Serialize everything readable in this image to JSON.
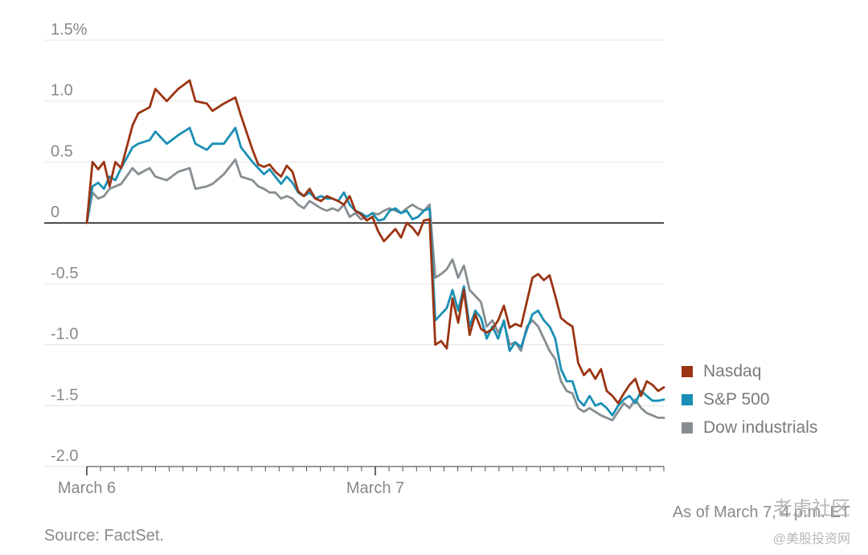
{
  "chart_data": {
    "type": "line",
    "y_ticks": [
      "1.5%",
      "1.0",
      "0.5",
      "0",
      "-0.5",
      "-1.0",
      "-1.5",
      "-2.0"
    ],
    "y_tick_values": [
      1.5,
      1.0,
      0.5,
      0,
      -0.5,
      -1.0,
      -1.5,
      -2.0
    ],
    "ylim": [
      -2.0,
      1.5
    ],
    "x_labels": [
      "March 6",
      "March 7"
    ],
    "grid": true,
    "legend_position": "right",
    "series": [
      {
        "name": "Nasdaq",
        "color": "#9b3412",
        "points": [
          [
            0,
            0
          ],
          [
            1,
            0.5
          ],
          [
            2,
            0.44
          ],
          [
            3,
            0.5
          ],
          [
            4,
            0.3
          ],
          [
            5,
            0.5
          ],
          [
            6,
            0.45
          ],
          [
            8,
            0.8
          ],
          [
            9,
            0.9
          ],
          [
            11,
            0.95
          ],
          [
            12,
            1.1
          ],
          [
            14,
            1.0
          ],
          [
            16,
            1.1
          ],
          [
            18,
            1.17
          ],
          [
            19,
            1.0
          ],
          [
            21,
            0.98
          ],
          [
            22,
            0.92
          ],
          [
            24,
            0.98
          ],
          [
            26,
            1.03
          ],
          [
            27,
            0.88
          ],
          [
            29,
            0.6
          ],
          [
            30,
            0.48
          ],
          [
            31,
            0.46
          ],
          [
            32,
            0.48
          ],
          [
            33,
            0.42
          ],
          [
            34,
            0.38
          ],
          [
            35,
            0.47
          ],
          [
            36,
            0.42
          ],
          [
            37,
            0.26
          ],
          [
            38,
            0.22
          ],
          [
            39,
            0.28
          ],
          [
            40,
            0.2
          ],
          [
            41,
            0.18
          ],
          [
            42,
            0.22
          ],
          [
            43,
            0.2
          ],
          [
            44,
            0.18
          ],
          [
            45,
            0.15
          ],
          [
            46,
            0.22
          ],
          [
            47,
            0.1
          ],
          [
            48,
            0.07
          ],
          [
            49,
            0.02
          ],
          [
            50,
            0.05
          ],
          [
            51,
            -0.07
          ],
          [
            52,
            -0.15
          ],
          [
            53,
            -0.1
          ],
          [
            54,
            -0.05
          ],
          [
            55,
            -0.12
          ],
          [
            56,
            0
          ],
          [
            57,
            -0.04
          ],
          [
            58,
            -0.1
          ],
          [
            59,
            0.02
          ],
          [
            60,
            0.03
          ],
          [
            61,
            -1.0
          ],
          [
            62,
            -0.97
          ],
          [
            63,
            -1.03
          ],
          [
            64,
            -0.62
          ],
          [
            65,
            -0.82
          ],
          [
            66,
            -0.55
          ],
          [
            67,
            -0.92
          ],
          [
            68,
            -0.75
          ],
          [
            69,
            -0.87
          ],
          [
            70,
            -0.9
          ],
          [
            71,
            -0.87
          ],
          [
            72,
            -0.8
          ],
          [
            73,
            -0.68
          ],
          [
            74,
            -0.86
          ],
          [
            75,
            -0.83
          ],
          [
            76,
            -0.85
          ],
          [
            77,
            -0.65
          ],
          [
            78,
            -0.45
          ],
          [
            79,
            -0.42
          ],
          [
            80,
            -0.47
          ],
          [
            81,
            -0.43
          ],
          [
            82,
            -0.6
          ],
          [
            83,
            -0.78
          ],
          [
            84,
            -0.82
          ],
          [
            85,
            -0.85
          ],
          [
            86,
            -1.15
          ],
          [
            87,
            -1.25
          ],
          [
            88,
            -1.2
          ],
          [
            89,
            -1.28
          ],
          [
            90,
            -1.2
          ],
          [
            91,
            -1.38
          ],
          [
            92,
            -1.42
          ],
          [
            93,
            -1.48
          ],
          [
            94,
            -1.4
          ],
          [
            95,
            -1.33
          ],
          [
            96,
            -1.28
          ],
          [
            97,
            -1.42
          ],
          [
            98,
            -1.3
          ],
          [
            99,
            -1.33
          ],
          [
            100,
            -1.38
          ],
          [
            101,
            -1.35
          ]
        ]
      },
      {
        "name": "S&P 500",
        "color": "#1a8fb5",
        "points": [
          [
            0,
            0
          ],
          [
            1,
            0.3
          ],
          [
            2,
            0.33
          ],
          [
            3,
            0.28
          ],
          [
            4,
            0.38
          ],
          [
            5,
            0.35
          ],
          [
            6,
            0.45
          ],
          [
            8,
            0.62
          ],
          [
            9,
            0.65
          ],
          [
            11,
            0.68
          ],
          [
            12,
            0.75
          ],
          [
            14,
            0.65
          ],
          [
            16,
            0.72
          ],
          [
            18,
            0.78
          ],
          [
            19,
            0.65
          ],
          [
            21,
            0.6
          ],
          [
            22,
            0.65
          ],
          [
            24,
            0.65
          ],
          [
            26,
            0.78
          ],
          [
            27,
            0.62
          ],
          [
            29,
            0.5
          ],
          [
            30,
            0.45
          ],
          [
            31,
            0.4
          ],
          [
            32,
            0.44
          ],
          [
            33,
            0.38
          ],
          [
            34,
            0.32
          ],
          [
            35,
            0.38
          ],
          [
            36,
            0.33
          ],
          [
            37,
            0.25
          ],
          [
            38,
            0.22
          ],
          [
            39,
            0.25
          ],
          [
            40,
            0.2
          ],
          [
            41,
            0.22
          ],
          [
            42,
            0.2
          ],
          [
            43,
            0.2
          ],
          [
            44,
            0.18
          ],
          [
            45,
            0.25
          ],
          [
            46,
            0.15
          ],
          [
            47,
            0.1
          ],
          [
            48,
            0.08
          ],
          [
            49,
            0.05
          ],
          [
            50,
            0.08
          ],
          [
            51,
            0.02
          ],
          [
            52,
            0.03
          ],
          [
            53,
            0.1
          ],
          [
            54,
            0.12
          ],
          [
            55,
            0.08
          ],
          [
            56,
            0.1
          ],
          [
            57,
            0.03
          ],
          [
            58,
            0.05
          ],
          [
            59,
            0.1
          ],
          [
            60,
            0.12
          ],
          [
            61,
            -0.8
          ],
          [
            62,
            -0.75
          ],
          [
            63,
            -0.7
          ],
          [
            64,
            -0.55
          ],
          [
            65,
            -0.72
          ],
          [
            66,
            -0.52
          ],
          [
            67,
            -0.85
          ],
          [
            68,
            -0.72
          ],
          [
            69,
            -0.78
          ],
          [
            70,
            -0.95
          ],
          [
            71,
            -0.85
          ],
          [
            72,
            -0.95
          ],
          [
            73,
            -0.8
          ],
          [
            74,
            -1.05
          ],
          [
            75,
            -0.98
          ],
          [
            76,
            -1.02
          ],
          [
            77,
            -0.88
          ],
          [
            78,
            -0.75
          ],
          [
            79,
            -0.72
          ],
          [
            80,
            -0.8
          ],
          [
            81,
            -0.85
          ],
          [
            82,
            -0.95
          ],
          [
            83,
            -1.2
          ],
          [
            84,
            -1.3
          ],
          [
            85,
            -1.3
          ],
          [
            86,
            -1.45
          ],
          [
            87,
            -1.5
          ],
          [
            88,
            -1.42
          ],
          [
            89,
            -1.5
          ],
          [
            90,
            -1.48
          ],
          [
            91,
            -1.52
          ],
          [
            92,
            -1.58
          ],
          [
            93,
            -1.5
          ],
          [
            94,
            -1.45
          ],
          [
            95,
            -1.42
          ],
          [
            96,
            -1.48
          ],
          [
            97,
            -1.38
          ],
          [
            98,
            -1.42
          ],
          [
            99,
            -1.46
          ],
          [
            100,
            -1.46
          ],
          [
            101,
            -1.45
          ]
        ]
      },
      {
        "name": "Dow industrials",
        "color": "#868e92",
        "points": [
          [
            0,
            0
          ],
          [
            1,
            0.25
          ],
          [
            2,
            0.2
          ],
          [
            3,
            0.22
          ],
          [
            4,
            0.28
          ],
          [
            5,
            0.3
          ],
          [
            6,
            0.32
          ],
          [
            8,
            0.45
          ],
          [
            9,
            0.4
          ],
          [
            11,
            0.45
          ],
          [
            12,
            0.38
          ],
          [
            14,
            0.35
          ],
          [
            16,
            0.42
          ],
          [
            18,
            0.45
          ],
          [
            19,
            0.28
          ],
          [
            21,
            0.3
          ],
          [
            22,
            0.32
          ],
          [
            24,
            0.4
          ],
          [
            26,
            0.52
          ],
          [
            27,
            0.38
          ],
          [
            29,
            0.35
          ],
          [
            30,
            0.3
          ],
          [
            31,
            0.28
          ],
          [
            32,
            0.25
          ],
          [
            33,
            0.25
          ],
          [
            34,
            0.2
          ],
          [
            35,
            0.22
          ],
          [
            36,
            0.2
          ],
          [
            37,
            0.15
          ],
          [
            38,
            0.12
          ],
          [
            39,
            0.18
          ],
          [
            40,
            0.15
          ],
          [
            41,
            0.12
          ],
          [
            42,
            0.1
          ],
          [
            43,
            0.12
          ],
          [
            44,
            0.1
          ],
          [
            45,
            0.15
          ],
          [
            46,
            0.05
          ],
          [
            47,
            0.08
          ],
          [
            48,
            0.03
          ],
          [
            49,
            0.05
          ],
          [
            50,
            0.08
          ],
          [
            51,
            0.07
          ],
          [
            52,
            0.1
          ],
          [
            53,
            0.12
          ],
          [
            54,
            0.1
          ],
          [
            55,
            0.08
          ],
          [
            56,
            0.12
          ],
          [
            57,
            0.15
          ],
          [
            58,
            0.12
          ],
          [
            59,
            0.1
          ],
          [
            60,
            0.15
          ],
          [
            61,
            -0.45
          ],
          [
            62,
            -0.42
          ],
          [
            63,
            -0.38
          ],
          [
            64,
            -0.3
          ],
          [
            65,
            -0.45
          ],
          [
            66,
            -0.35
          ],
          [
            67,
            -0.55
          ],
          [
            68,
            -0.6
          ],
          [
            69,
            -0.65
          ],
          [
            70,
            -0.85
          ],
          [
            71,
            -0.8
          ],
          [
            72,
            -0.9
          ],
          [
            73,
            -0.82
          ],
          [
            74,
            -1.0
          ],
          [
            75,
            -0.98
          ],
          [
            76,
            -1.05
          ],
          [
            77,
            -0.85
          ],
          [
            78,
            -0.8
          ],
          [
            79,
            -0.85
          ],
          [
            80,
            -0.95
          ],
          [
            81,
            -1.05
          ],
          [
            82,
            -1.12
          ],
          [
            83,
            -1.3
          ],
          [
            84,
            -1.38
          ],
          [
            85,
            -1.4
          ],
          [
            86,
            -1.52
          ],
          [
            87,
            -1.55
          ],
          [
            88,
            -1.52
          ],
          [
            89,
            -1.55
          ],
          [
            90,
            -1.58
          ],
          [
            91,
            -1.6
          ],
          [
            92,
            -1.62
          ],
          [
            93,
            -1.55
          ],
          [
            94,
            -1.48
          ],
          [
            95,
            -1.52
          ],
          [
            96,
            -1.45
          ],
          [
            97,
            -1.52
          ],
          [
            98,
            -1.56
          ],
          [
            99,
            -1.58
          ],
          [
            100,
            -1.6
          ],
          [
            101,
            -1.6
          ]
        ]
      }
    ]
  },
  "footer": {
    "source": "Source: FactSet.",
    "as_of": "As of March 7, 4 p.m. ET"
  },
  "watermark": {
    "line1": "老虎社区",
    "line2": "@美股投资网"
  }
}
